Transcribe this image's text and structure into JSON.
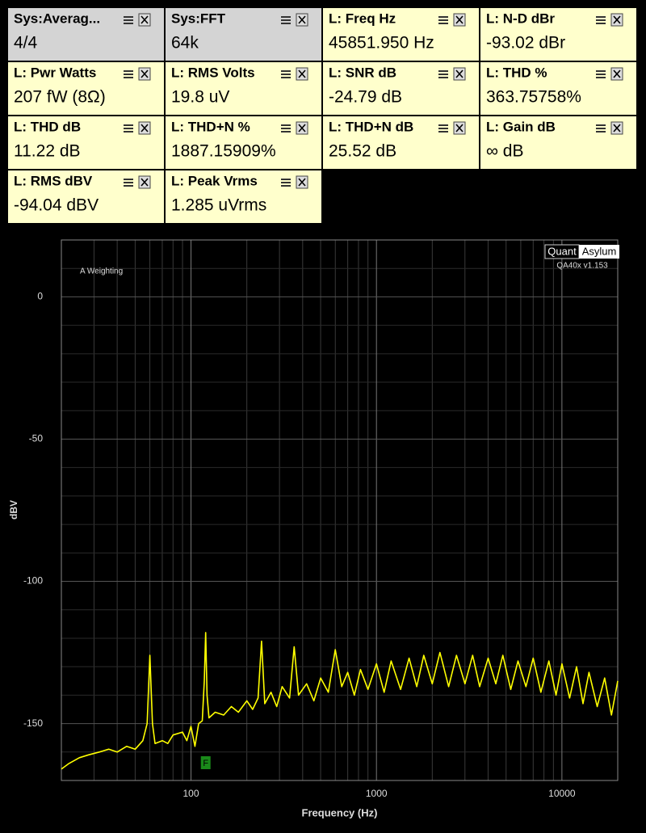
{
  "widgets": [
    {
      "title": "Sys:Averag...",
      "value": "4/4",
      "color": "#d4d4d4"
    },
    {
      "title": "Sys:FFT",
      "value": "64k",
      "color": "#d4d4d4"
    },
    {
      "title": "L: Freq Hz",
      "value": "45851.950 Hz",
      "color": "#ffffcc"
    },
    {
      "title": "L: N-D dBr",
      "value": "-93.02 dBr",
      "color": "#ffffcc"
    },
    {
      "title": "L: Pwr Watts",
      "value": "207 fW (8Ω)",
      "color": "#ffffcc"
    },
    {
      "title": "L: RMS Volts",
      "value": "19.8 uV",
      "color": "#ffffcc"
    },
    {
      "title": "L: SNR dB",
      "value": "-24.79 dB",
      "color": "#ffffcc"
    },
    {
      "title": "L: THD %",
      "value": "363.75758%",
      "color": "#ffffcc"
    },
    {
      "title": "L: THD dB",
      "value": "11.22 dB",
      "color": "#ffffcc"
    },
    {
      "title": "L: THD+N %",
      "value": "1887.15909%",
      "color": "#ffffcc"
    },
    {
      "title": "L: THD+N dB",
      "value": "25.52 dB",
      "color": "#ffffcc"
    },
    {
      "title": "L: Gain dB",
      "value": "∞ dB",
      "color": "#ffffcc"
    },
    {
      "title": "L: RMS dBV",
      "value": "-94.04 dBV",
      "color": "#ffffcc"
    },
    {
      "title": "L: Peak Vrms",
      "value": "1.285 uVrms",
      "color": "#ffffcc"
    }
  ],
  "chart_data": {
    "type": "line",
    "x_label": "Frequency (Hz)",
    "y_label": "dBV",
    "annotation": "A Weighting",
    "logo_left": "Quant",
    "logo_right": "Asylum",
    "version": "QA40x v1.153",
    "marker": {
      "label": "F",
      "x": 120
    },
    "x_log": true,
    "grid": true,
    "xlim": [
      20,
      20000
    ],
    "xticks": [
      100,
      1000,
      10000
    ],
    "x_minor_ticks": [
      30,
      40,
      50,
      60,
      70,
      80,
      90,
      200,
      300,
      400,
      500,
      600,
      700,
      800,
      900,
      2000,
      3000,
      4000,
      5000,
      6000,
      7000,
      8000,
      9000
    ],
    "ylim": [
      -170,
      20
    ],
    "yticks": [
      -150,
      -100,
      -50,
      0
    ],
    "y_minor_ticks": [
      -160,
      -140,
      -130,
      -120,
      -110,
      -90,
      -80,
      -70,
      -60,
      -40,
      -30,
      -20,
      -10,
      10
    ],
    "x": [
      20,
      22,
      25,
      28,
      32,
      36,
      40,
      45,
      50,
      55,
      58,
      60,
      62,
      64,
      70,
      75,
      80,
      90,
      95,
      100,
      105,
      110,
      115,
      118,
      120,
      122,
      125,
      135,
      150,
      165,
      180,
      200,
      215,
      230,
      240,
      250,
      270,
      290,
      310,
      340,
      360,
      380,
      420,
      460,
      500,
      550,
      600,
      650,
      700,
      760,
      820,
      900,
      1000,
      1100,
      1200,
      1350,
      1500,
      1650,
      1800,
      2000,
      2200,
      2450,
      2700,
      3000,
      3300,
      3600,
      4000,
      4400,
      4800,
      5300,
      5800,
      6400,
      7000,
      7700,
      8500,
      9300,
      10000,
      11000,
      12000,
      13000,
      14000,
      15500,
      17000,
      18500,
      20000
    ],
    "series": [
      {
        "color": "#ffff00",
        "values": [
          -166,
          -164,
          -162,
          -161,
          -160,
          -159,
          -160,
          -158,
          -159,
          -156,
          -150,
          -126,
          -150,
          -157,
          -156,
          -157,
          -154,
          -153,
          -156,
          -151,
          -158,
          -150,
          -149,
          -135,
          -118,
          -140,
          -148,
          -146,
          -147,
          -144,
          -146,
          -142,
          -145,
          -141,
          -121,
          -143,
          -139,
          -144,
          -137,
          -141,
          -123,
          -140,
          -136,
          -142,
          -134,
          -139,
          -124,
          -137,
          -132,
          -140,
          -131,
          -138,
          -129,
          -139,
          -128,
          -138,
          -127,
          -137,
          -126,
          -136,
          -125,
          -137,
          -126,
          -136,
          -126,
          -137,
          -127,
          -136,
          -126,
          -138,
          -128,
          -137,
          -127,
          -139,
          -128,
          -140,
          -129,
          -141,
          -130,
          -143,
          -132,
          -144,
          -134,
          -147,
          -135
        ]
      }
    ]
  }
}
